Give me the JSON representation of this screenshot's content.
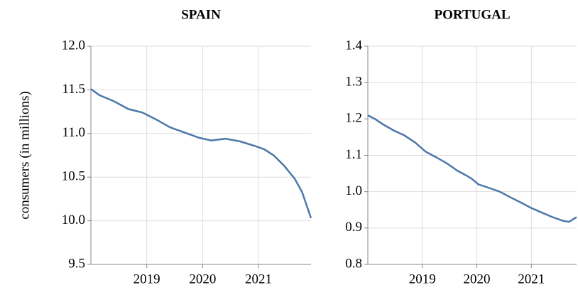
{
  "chart_data": [
    {
      "type": "line",
      "title": "SPAIN",
      "y_label": "consumers (in millions)",
      "color": "#4c78a8",
      "grid": true,
      "x": [
        2018.0,
        2018.15,
        2018.41,
        2018.67,
        2018.92,
        2019.17,
        2019.42,
        2019.68,
        2019.94,
        2020.15,
        2020.41,
        2020.67,
        2020.92,
        2021.1,
        2021.27,
        2021.46,
        2021.65,
        2021.78,
        2021.94
      ],
      "values": [
        11.51,
        11.44,
        11.37,
        11.28,
        11.24,
        11.16,
        11.07,
        11.01,
        10.95,
        10.92,
        10.94,
        10.91,
        10.86,
        10.82,
        10.75,
        10.63,
        10.48,
        10.33,
        10.03
      ],
      "xlim": [
        2018,
        2021.94
      ],
      "xticks": [
        2019,
        2020,
        2021
      ],
      "ylim": [
        9.5,
        12
      ],
      "yticks": [
        9.5,
        {
          "value": 10,
          "label": "10.0"
        },
        10.5,
        {
          "value": 11,
          "label": "11.0"
        },
        11.5,
        {
          "value": 12,
          "label": "12.0"
        }
      ]
    },
    {
      "type": "line",
      "title": "PORTUGAL",
      "color": "#4c78a8",
      "grid": true,
      "x": [
        2018.0,
        2018.13,
        2018.28,
        2018.48,
        2018.67,
        2018.87,
        2019.06,
        2019.25,
        2019.45,
        2019.64,
        2019.8,
        2019.9,
        2020.03,
        2020.23,
        2020.42,
        2020.61,
        2020.81,
        2021.0,
        2021.2,
        2021.39,
        2021.58,
        2021.69,
        2021.83
      ],
      "values": [
        1.21,
        1.2,
        1.185,
        1.168,
        1.155,
        1.135,
        1.11,
        1.095,
        1.078,
        1.058,
        1.045,
        1.036,
        1.02,
        1.01,
        1.0,
        0.985,
        0.97,
        0.955,
        0.942,
        0.93,
        0.92,
        0.917,
        0.93
      ],
      "xlim": [
        2018,
        2021.83
      ],
      "xticks": [
        2019,
        2020,
        2021
      ],
      "ylim": [
        0.8,
        1.4
      ],
      "yticks": [
        0.8,
        0.9,
        {
          "value": 1,
          "label": "1.0"
        },
        1.1,
        1.2,
        1.3,
        1.4
      ]
    }
  ]
}
